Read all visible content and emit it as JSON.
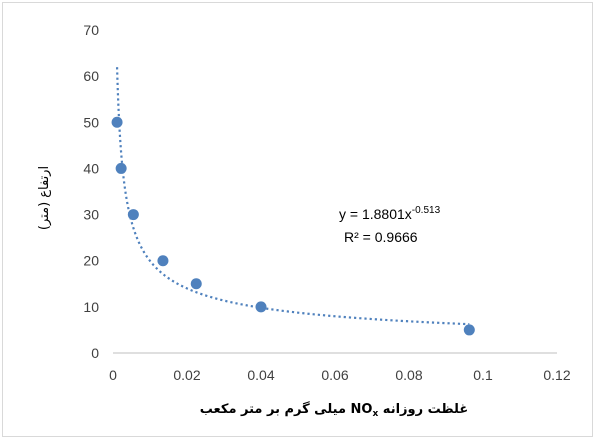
{
  "chart_data": {
    "type": "scatter",
    "x_ticks": [
      "0",
      "0.02",
      "0.04",
      "0.06",
      "0.08",
      "0.1",
      "0.12"
    ],
    "y_ticks": [
      "0",
      "10",
      "20",
      "30",
      "40",
      "50",
      "60",
      "70"
    ],
    "xlim": [
      0,
      0.12
    ],
    "ylim": [
      0,
      70
    ],
    "xlabel_pre": "غلظت روزانه ",
    "xlabel_chem": "NO",
    "xlabel_sub": "x",
    "xlabel_post": " میلی گرم بر متر مکعب",
    "ylabel": "ارتفاع (متر)",
    "grid": false,
    "series": [
      {
        "x": [
          0.0011,
          0.0022,
          0.0055,
          0.0135,
          0.0225,
          0.04,
          0.0963
        ],
        "y": [
          50,
          40,
          30,
          20,
          15,
          10,
          5
        ],
        "color": "#4f81bd"
      }
    ],
    "trendline": {
      "type": "power",
      "coefficient": 1.8801,
      "exponent": -0.513,
      "x_range": [
        0.0011,
        0.0963
      ],
      "color": "#4f81bd",
      "style": "dotted",
      "equation_base": "y = 1.8801x",
      "equation_exp": "-0.513",
      "r2_label": "R² = 0.9666"
    }
  }
}
